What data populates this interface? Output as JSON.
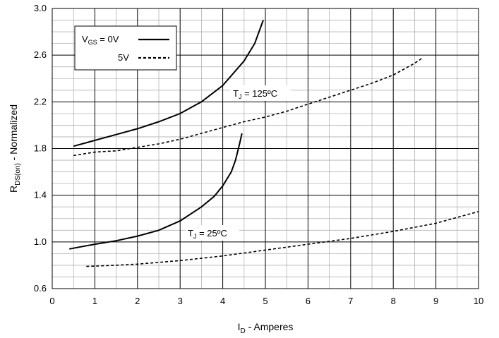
{
  "chart_data": {
    "type": "line",
    "xlabel": {
      "main": "I",
      "sub": "D",
      "rest": " - Amperes"
    },
    "ylabel": {
      "main": "R",
      "sub": "DS(on)",
      "rest": " - Normalized"
    },
    "xlim": [
      0,
      10
    ],
    "ylim": [
      0.6,
      3.0
    ],
    "x_ticks": [
      "0",
      "1",
      "2",
      "3",
      "4",
      "5",
      "6",
      "7",
      "8",
      "9",
      "10"
    ],
    "y_ticks": [
      "0.6",
      "1.0",
      "1.4",
      "1.8",
      "2.2",
      "2.6",
      "3.0"
    ],
    "grid": true,
    "legend_position": "top-left",
    "legend": [
      {
        "label_main": "V",
        "label_sub": "GS",
        "label_rest": " = 0V",
        "style": "solid"
      },
      {
        "label_main": "",
        "label_sub": "",
        "label_rest": "5V",
        "style": "dashed"
      }
    ],
    "annotations": [
      {
        "main": "T",
        "sub": "J",
        "rest": " = 125ºC"
      },
      {
        "main": "T",
        "sub": "J",
        "rest": " = 25ºC"
      }
    ],
    "series": [
      {
        "style": "solid",
        "x": [
          0.5,
          1,
          1.5,
          2,
          2.5,
          3,
          3.5,
          4,
          4.5,
          4.75,
          4.95
        ],
        "y": [
          1.82,
          1.87,
          1.92,
          1.97,
          2.03,
          2.1,
          2.2,
          2.34,
          2.55,
          2.7,
          2.9
        ]
      },
      {
        "style": "dashed",
        "x": [
          0.5,
          1,
          1.5,
          2,
          2.5,
          3,
          3.5,
          4,
          4.5,
          5,
          5.5,
          6,
          6.5,
          7,
          7.5,
          8,
          8.5,
          8.7
        ],
        "y": [
          1.74,
          1.77,
          1.78,
          1.81,
          1.84,
          1.88,
          1.93,
          1.98,
          2.03,
          2.07,
          2.12,
          2.18,
          2.24,
          2.3,
          2.36,
          2.43,
          2.53,
          2.58
        ]
      },
      {
        "style": "solid",
        "x": [
          0.4,
          1,
          1.5,
          2,
          2.5,
          3,
          3.5,
          3.8,
          4.0,
          4.2,
          4.3,
          4.4,
          4.45
        ],
        "y": [
          0.94,
          0.98,
          1.01,
          1.05,
          1.1,
          1.18,
          1.3,
          1.39,
          1.48,
          1.6,
          1.7,
          1.85,
          1.93
        ]
      },
      {
        "style": "dashed",
        "x": [
          0.8,
          1.5,
          2,
          3,
          4,
          5,
          6,
          7,
          8,
          9,
          10
        ],
        "y": [
          0.79,
          0.8,
          0.81,
          0.84,
          0.88,
          0.93,
          0.98,
          1.03,
          1.09,
          1.16,
          1.26
        ]
      }
    ]
  }
}
